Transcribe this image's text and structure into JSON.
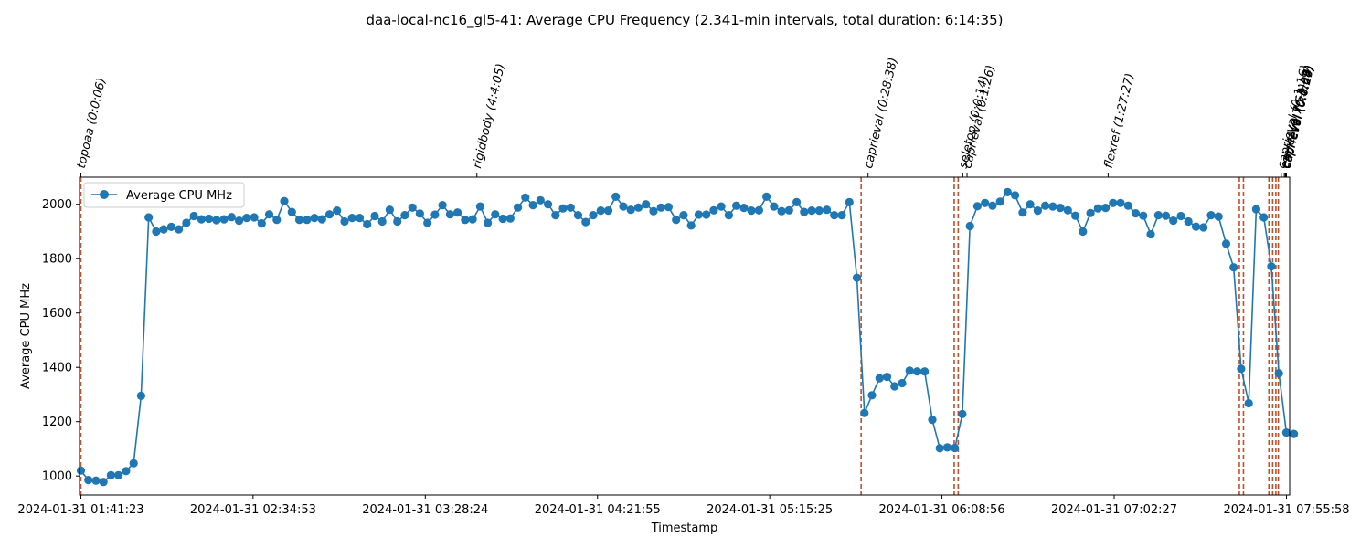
{
  "chart_data": {
    "type": "line",
    "title": "daa-local-nc16_gl5-41: Average CPU Frequency (2.341-min intervals, total duration: 6:14:35)",
    "xlabel": "Timestamp",
    "ylabel": "Average CPU MHz",
    "xlim": [
      "2024-01-31 01:40:58",
      "2024-01-31 07:56:58"
    ],
    "ylim": [
      930,
      2100
    ],
    "x_ticks": [
      "2024-01-31 01:41:23",
      "2024-01-31 02:34:53",
      "2024-01-31 03:28:24",
      "2024-01-31 04:21:55",
      "2024-01-31 05:15:25",
      "2024-01-31 06:08:56",
      "2024-01-31 07:02:27",
      "2024-01-31 07:55:58"
    ],
    "y_ticks": [
      1000,
      1200,
      1400,
      1600,
      1800,
      2000
    ],
    "grid": false,
    "legend": {
      "position": "upper-left",
      "entries": [
        "Average CPU MHz"
      ]
    },
    "colors": {
      "line": "#1f77b4",
      "marker": "#1f77b4",
      "vline": "#c0502a",
      "axes": "#000000"
    },
    "interval_minutes": 2.341,
    "x_start": "2024-01-31 01:41:23",
    "series": [
      {
        "name": "Average CPU MHz",
        "values": [
          1020,
          985,
          983,
          978,
          1003,
          1003,
          1018,
          1047,
          1295,
          1952,
          1900,
          1908,
          1917,
          1908,
          1932,
          1957,
          1945,
          1947,
          1942,
          1945,
          1953,
          1940,
          1950,
          1952,
          1930,
          1963,
          1943,
          2012,
          1972,
          1943,
          1943,
          1950,
          1945,
          1963,
          1977,
          1937,
          1950,
          1950,
          1927,
          1957,
          1937,
          1980,
          1937,
          1960,
          1988,
          1966,
          1932,
          1962,
          1997,
          1963,
          1970,
          1943,
          1945,
          1992,
          1932,
          1963,
          1947,
          1948,
          1988,
          2025,
          1997,
          2015,
          2000,
          1960,
          1985,
          1988,
          1960,
          1935,
          1960,
          1977,
          1977,
          2028,
          1992,
          1980,
          1988,
          2000,
          1975,
          1988,
          1990,
          1943,
          1960,
          1922,
          1962,
          1962,
          1978,
          1992,
          1960,
          1995,
          1987,
          1977,
          1978,
          2028,
          1992,
          1975,
          1978,
          2008,
          1972,
          1977,
          1977,
          1980,
          1960,
          1960,
          2008,
          1730,
          1232,
          1297,
          1360,
          1365,
          1330,
          1342,
          1388,
          1385,
          1385,
          1207,
          1102,
          1105,
          1103,
          1228,
          1920,
          1993,
          2005,
          1995,
          2010,
          2045,
          2033,
          1970,
          2000,
          1977,
          1995,
          1992,
          1987,
          1978,
          1958,
          1900,
          1968,
          1985,
          1987,
          2005,
          2005,
          1995,
          1967,
          1958,
          1890,
          1960,
          1958,
          1940,
          1957,
          1937,
          1918,
          1915,
          1960,
          1955,
          1855,
          1768,
          1395,
          1268,
          1982,
          1952,
          1772,
          1378,
          1160,
          1155
        ]
      }
    ],
    "events": [
      {
        "label": "topoaa (0:0:06)",
        "x": "2024-01-31 01:41:23"
      },
      {
        "label": "rigidbody (4:4:05)",
        "x": "2024-01-31 03:44:26"
      },
      {
        "label": "caprieval (0:28:38)",
        "x": "2024-01-31 05:45:58"
      },
      {
        "label": "seletop (0:0:14)",
        "x": "2024-01-31 06:15:24"
      },
      {
        "label": "caprieval (0:1:26)",
        "x": "2024-01-31 06:16:44"
      },
      {
        "label": "flexref (1:27:27)",
        "x": "2024-01-31 07:00:34"
      },
      {
        "label": "caprieval (0:1:16)",
        "x": "2024-01-31 07:54:22"
      },
      {
        "label": "emref (0:7:53)",
        "x": "2024-01-31 07:55:18"
      },
      {
        "label": "caprieval (0:1:08)",
        "x": "2024-01-31 07:55:38"
      },
      {
        "label": "caprieval (0:0:57)",
        "x": "2024-01-31 07:55:46"
      },
      {
        "label": "caprieval (0:0:44)",
        "x": "2024-01-31 07:55:53"
      },
      {
        "label": "caprieval (0:0:29)",
        "x": "2024-01-31 07:55:58"
      }
    ],
    "vlines": [
      "2024-01-31 01:41:23",
      "2024-01-31 05:43:49",
      "2024-01-31 06:12:44",
      "2024-01-31 06:13:59",
      "2024-01-31 07:41:20",
      "2024-01-31 07:42:37",
      "2024-01-31 07:50:31",
      "2024-01-31 07:51:41",
      "2024-01-31 07:52:41",
      "2024-01-31 07:53:27"
    ]
  }
}
